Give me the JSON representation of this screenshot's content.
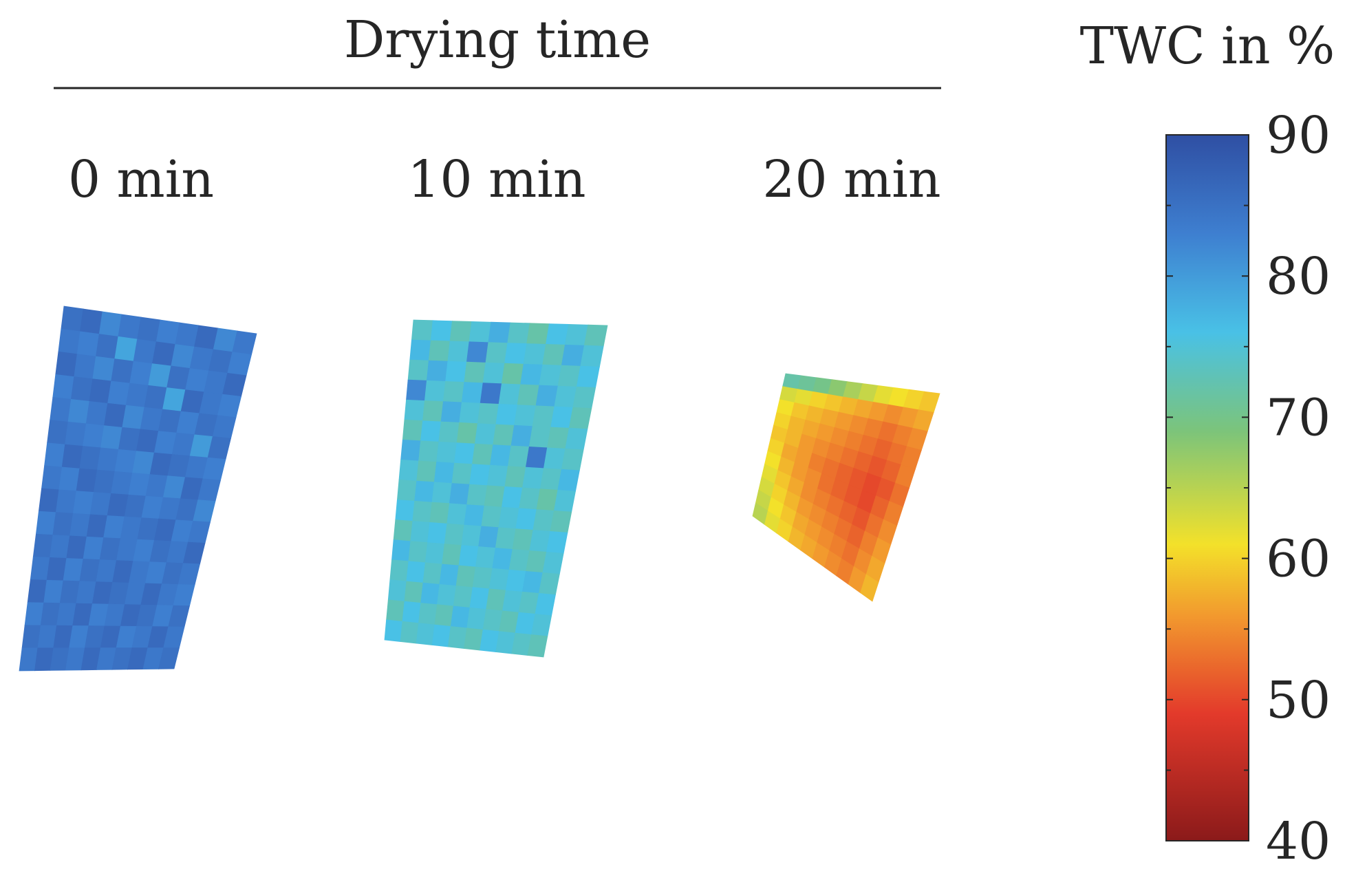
{
  "chart_data": {
    "type": "heatmap",
    "title": "Drying time",
    "panels": [
      {
        "label": "0 min",
        "rows": 16,
        "cols": 10,
        "mean_twc": 84,
        "values": [
          [
            85,
            86,
            82,
            84,
            85,
            83,
            84,
            86,
            82,
            84
          ],
          [
            84,
            83,
            85,
            79,
            84,
            86,
            82,
            84,
            85,
            83
          ],
          [
            86,
            84,
            82,
            85,
            83,
            80,
            85,
            83,
            84,
            86
          ],
          [
            83,
            85,
            86,
            83,
            84,
            85,
            79,
            86,
            84,
            83
          ],
          [
            84,
            82,
            84,
            86,
            82,
            84,
            85,
            83,
            85,
            84
          ],
          [
            85,
            84,
            83,
            82,
            85,
            86,
            83,
            84,
            80,
            85
          ],
          [
            83,
            86,
            85,
            84,
            83,
            82,
            86,
            85,
            84,
            83
          ],
          [
            84,
            83,
            86,
            85,
            84,
            83,
            84,
            82,
            86,
            84
          ],
          [
            86,
            84,
            83,
            84,
            86,
            85,
            83,
            84,
            85,
            82
          ],
          [
            83,
            85,
            84,
            86,
            83,
            84,
            85,
            86,
            83,
            84
          ],
          [
            85,
            84,
            86,
            83,
            85,
            84,
            83,
            85,
            84,
            86
          ],
          [
            84,
            86,
            83,
            85,
            84,
            86,
            84,
            83,
            85,
            84
          ],
          [
            86,
            83,
            85,
            84,
            86,
            85,
            84,
            86,
            84,
            83
          ],
          [
            83,
            85,
            84,
            86,
            83,
            84,
            86,
            85,
            83,
            85
          ],
          [
            85,
            84,
            86,
            83,
            85,
            86,
            83,
            84,
            86,
            84
          ],
          [
            84,
            86,
            85,
            84,
            86,
            84,
            85,
            86,
            84,
            85
          ]
        ]
      },
      {
        "label": "10 min",
        "rows": 16,
        "cols": 10,
        "mean_twc": 76,
        "values": [
          [
            74,
            76,
            73,
            75,
            78,
            74,
            72,
            76,
            75,
            73
          ],
          [
            77,
            73,
            75,
            82,
            74,
            76,
            75,
            73,
            78,
            75
          ],
          [
            74,
            78,
            76,
            73,
            75,
            72,
            77,
            75,
            74,
            76
          ],
          [
            82,
            75,
            74,
            77,
            84,
            75,
            73,
            78,
            75,
            74
          ],
          [
            75,
            73,
            78,
            75,
            74,
            76,
            75,
            74,
            76,
            73
          ],
          [
            73,
            76,
            74,
            72,
            75,
            73,
            78,
            74,
            73,
            75
          ],
          [
            78,
            74,
            75,
            76,
            73,
            77,
            74,
            84,
            75,
            74
          ],
          [
            75,
            73,
            77,
            74,
            76,
            75,
            73,
            75,
            74,
            77
          ],
          [
            74,
            77,
            75,
            78,
            74,
            73,
            76,
            74,
            72,
            75
          ],
          [
            76,
            74,
            73,
            75,
            77,
            74,
            75,
            76,
            74,
            73
          ],
          [
            73,
            75,
            76,
            74,
            75,
            78,
            74,
            73,
            75,
            76
          ],
          [
            77,
            74,
            75,
            73,
            76,
            75,
            77,
            74,
            73,
            75
          ],
          [
            74,
            76,
            74,
            77,
            73,
            74,
            75,
            76,
            77,
            74
          ],
          [
            75,
            73,
            77,
            75,
            74,
            76,
            73,
            75,
            74,
            76
          ],
          [
            73,
            76,
            74,
            73,
            77,
            75,
            74,
            73,
            76,
            75
          ],
          [
            76,
            74,
            75,
            76,
            74,
            73,
            76,
            75,
            74,
            73
          ]
        ]
      },
      {
        "label": "20 min",
        "rows": 11,
        "cols": 10,
        "mean_twc": 57,
        "values": [
          [
            72,
            71,
            70,
            68,
            66,
            64,
            62,
            61,
            60,
            59
          ],
          [
            63,
            62,
            60,
            59,
            58,
            57,
            56,
            55,
            56,
            57
          ],
          [
            61,
            59,
            58,
            57,
            56,
            55,
            54,
            53,
            54,
            55
          ],
          [
            60,
            58,
            57,
            56,
            55,
            54,
            53,
            52,
            53,
            54
          ],
          [
            59,
            58,
            56,
            55,
            54,
            53,
            52,
            51,
            52,
            54
          ],
          [
            60,
            57,
            56,
            54,
            53,
            52,
            51,
            50,
            51,
            53
          ],
          [
            61,
            58,
            56,
            55,
            53,
            52,
            51,
            50,
            52,
            54
          ],
          [
            62,
            59,
            57,
            55,
            54,
            53,
            52,
            51,
            53,
            55
          ],
          [
            63,
            60,
            58,
            56,
            55,
            54,
            53,
            52,
            54,
            56
          ],
          [
            64,
            61,
            59,
            57,
            56,
            55,
            54,
            53,
            55,
            57
          ],
          [
            65,
            62,
            60,
            58,
            57,
            56,
            55,
            54,
            56,
            58
          ]
        ]
      }
    ],
    "colorbar": {
      "title": "TWC in %",
      "range": [
        40,
        90
      ],
      "ticks": [
        "90",
        "80",
        "70",
        "60",
        "50",
        "40"
      ],
      "colormap": "jet",
      "colors": [
        "#7f0000",
        "#ff0000",
        "#ff7f00",
        "#ffff00",
        "#7fff7f",
        "#00ffff",
        "#007fff",
        "#0000ff",
        "#00008f"
      ]
    }
  }
}
